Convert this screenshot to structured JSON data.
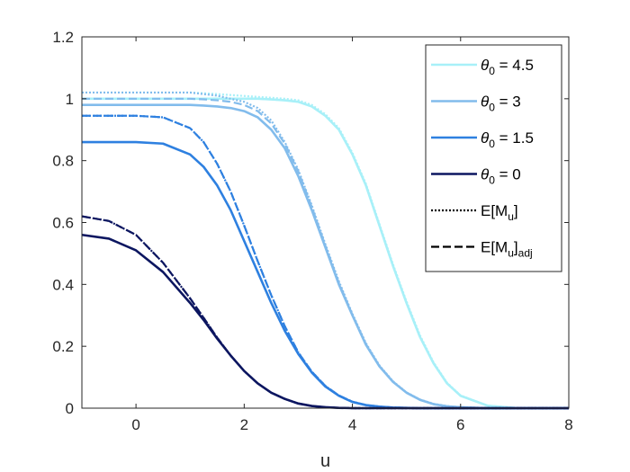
{
  "chart_data": {
    "type": "line",
    "title": "",
    "xlabel": "u",
    "ylabel": "",
    "xlim": [
      -1,
      8
    ],
    "ylim": [
      0,
      1.2
    ],
    "xticks": [
      0,
      2,
      4,
      6,
      8
    ],
    "yticks": [
      0,
      0.2,
      0.4,
      0.6,
      0.8,
      1,
      1.2
    ],
    "xtick_labels": [
      "0",
      "2",
      "4",
      "6",
      "8"
    ],
    "ytick_labels": [
      "0",
      "0.2",
      "0.4",
      "0.6",
      "0.8",
      "1",
      "1.2"
    ],
    "grid": false,
    "legend_position": "top-right",
    "x": [
      -1,
      -0.5,
      0,
      0.5,
      1,
      1.25,
      1.5,
      1.75,
      2,
      2.25,
      2.5,
      2.75,
      3,
      3.25,
      3.5,
      3.75,
      4,
      4.25,
      4.5,
      4.75,
      5,
      5.25,
      5.5,
      5.75,
      6,
      6.5,
      7,
      7.5,
      8
    ],
    "series": [
      {
        "name": "θ0 = 4.5",
        "legend_main": "θ",
        "legend_sub": "0",
        "legend_rest": " = 4.5",
        "color": "#a8f0f8",
        "values": [
          1.0,
          1.0,
          1.0,
          1.0,
          1.0,
          1.0,
          1.0,
          1.0,
          1.0,
          1.0,
          0.998,
          0.995,
          0.99,
          0.975,
          0.945,
          0.9,
          0.82,
          0.72,
          0.59,
          0.46,
          0.34,
          0.23,
          0.145,
          0.08,
          0.04,
          0.008,
          0.001,
          0.0,
          0.0
        ],
        "e_mu": [
          1.02,
          1.02,
          1.02,
          1.02,
          1.02,
          1.018,
          1.015,
          1.012,
          1.009,
          1.006,
          1.003,
          1.0,
          0.995,
          0.98,
          0.95,
          0.905,
          0.825,
          0.725,
          0.595,
          0.465,
          0.345,
          0.235,
          0.148,
          0.082,
          0.041,
          0.008,
          0.001,
          0.0,
          0.0
        ],
        "e_mu_adj": [
          1.0,
          1.0,
          1.0,
          1.0,
          1.0,
          1.0,
          1.0,
          1.0,
          1.0,
          1.0,
          0.998,
          0.995,
          0.99,
          0.975,
          0.945,
          0.9,
          0.82,
          0.72,
          0.59,
          0.46,
          0.34,
          0.23,
          0.145,
          0.08,
          0.04,
          0.008,
          0.001,
          0.0,
          0.0
        ]
      },
      {
        "name": "θ0 = 3",
        "legend_main": "θ",
        "legend_sub": "0",
        "legend_rest": " = 3",
        "color": "#82bcec",
        "values": [
          0.98,
          0.98,
          0.98,
          0.98,
          0.98,
          0.978,
          0.975,
          0.97,
          0.96,
          0.94,
          0.9,
          0.84,
          0.75,
          0.64,
          0.52,
          0.4,
          0.3,
          0.205,
          0.135,
          0.085,
          0.05,
          0.027,
          0.013,
          0.006,
          0.003,
          0.0,
          0.0,
          0.0,
          0.0
        ],
        "e_mu": [
          1.02,
          1.02,
          1.02,
          1.02,
          1.02,
          1.015,
          1.01,
          1.0,
          0.99,
          0.97,
          0.93,
          0.86,
          0.77,
          0.655,
          0.53,
          0.41,
          0.305,
          0.21,
          0.138,
          0.087,
          0.051,
          0.028,
          0.014,
          0.007,
          0.003,
          0.0,
          0.0,
          0.0,
          0.0
        ],
        "e_mu_adj": [
          1.0,
          1.0,
          1.0,
          1.0,
          1.0,
          0.998,
          0.995,
          0.99,
          0.98,
          0.96,
          0.92,
          0.855,
          0.765,
          0.65,
          0.525,
          0.405,
          0.302,
          0.207,
          0.136,
          0.086,
          0.05,
          0.027,
          0.013,
          0.006,
          0.003,
          0.0,
          0.0,
          0.0,
          0.0
        ]
      },
      {
        "name": "θ0 = 1.5",
        "legend_main": "θ",
        "legend_sub": "0",
        "legend_rest": " = 1.5",
        "color": "#2e80e0",
        "values": [
          0.86,
          0.86,
          0.86,
          0.855,
          0.82,
          0.78,
          0.72,
          0.64,
          0.54,
          0.44,
          0.34,
          0.25,
          0.175,
          0.115,
          0.07,
          0.04,
          0.02,
          0.01,
          0.005,
          0.002,
          0.001,
          0.0,
          0.0,
          0.0,
          0.0,
          0.0,
          0.0,
          0.0,
          0.0
        ],
        "e_mu": [
          0.945,
          0.945,
          0.945,
          0.94,
          0.905,
          0.86,
          0.79,
          0.7,
          0.59,
          0.475,
          0.365,
          0.265,
          0.18,
          0.118,
          0.072,
          0.041,
          0.021,
          0.01,
          0.005,
          0.002,
          0.001,
          0.0,
          0.0,
          0.0,
          0.0,
          0.0,
          0.0,
          0.0,
          0.0
        ],
        "e_mu_adj": [
          0.945,
          0.945,
          0.945,
          0.94,
          0.905,
          0.86,
          0.79,
          0.7,
          0.59,
          0.475,
          0.365,
          0.265,
          0.18,
          0.118,
          0.072,
          0.041,
          0.021,
          0.01,
          0.005,
          0.002,
          0.001,
          0.0,
          0.0,
          0.0,
          0.0,
          0.0,
          0.0,
          0.0,
          0.0
        ]
      },
      {
        "name": "θ0 = 0",
        "legend_main": "θ",
        "legend_sub": "0",
        "legend_rest": " = 0",
        "color": "#0c1660",
        "values": [
          0.56,
          0.548,
          0.51,
          0.44,
          0.34,
          0.285,
          0.225,
          0.17,
          0.12,
          0.08,
          0.05,
          0.03,
          0.015,
          0.007,
          0.003,
          0.001,
          0.0,
          0.0,
          0.0,
          0.0,
          0.0,
          0.0,
          0.0,
          0.0,
          0.0,
          0.0,
          0.0,
          0.0,
          0.0
        ],
        "e_mu": [
          0.62,
          0.605,
          0.56,
          0.47,
          0.355,
          0.292,
          0.228,
          0.17,
          0.12,
          0.08,
          0.05,
          0.03,
          0.015,
          0.007,
          0.003,
          0.001,
          0.0,
          0.0,
          0.0,
          0.0,
          0.0,
          0.0,
          0.0,
          0.0,
          0.0,
          0.0,
          0.0,
          0.0,
          0.0
        ],
        "e_mu_adj": [
          0.62,
          0.605,
          0.56,
          0.47,
          0.355,
          0.292,
          0.228,
          0.17,
          0.12,
          0.08,
          0.05,
          0.03,
          0.015,
          0.007,
          0.003,
          0.001,
          0.0,
          0.0,
          0.0,
          0.0,
          0.0,
          0.0,
          0.0,
          0.0,
          0.0,
          0.0,
          0.0,
          0.0,
          0.0
        ]
      }
    ],
    "style_legend": [
      {
        "main": "E[M",
        "sub": "u",
        "rest": "]",
        "dash": "dotted"
      },
      {
        "main": "E[M",
        "sub": "u",
        "rest": "]",
        "sub2": "adj",
        "dash": "dashed"
      }
    ]
  },
  "colors": {
    "axis": "#262626",
    "background": "#ffffff"
  }
}
